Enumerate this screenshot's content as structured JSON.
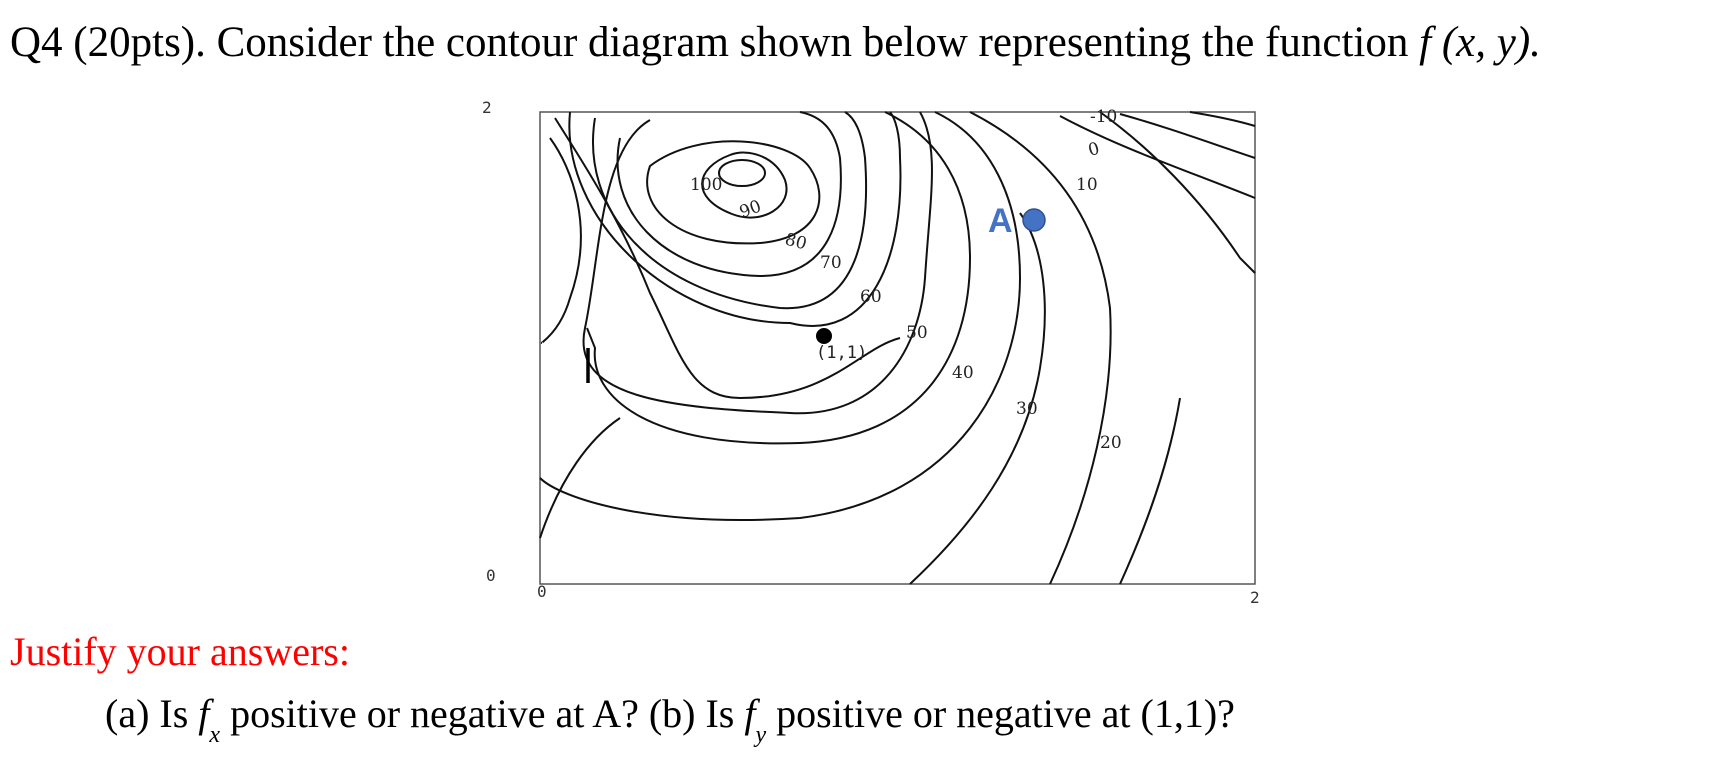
{
  "question": {
    "prefix": "Q4 (20pts). Consider the contour diagram shown below representing the function ",
    "function_expr": "f (x, y).",
    "justify": "Justify your answers:",
    "part_a_pre": "(a) Is ",
    "part_a_f": "f",
    "part_a_sub": "x",
    "part_a_post": " positive or negative at A?  ",
    "part_b_pre": "(b) Is ",
    "part_b_f": "f",
    "part_b_sub": "y",
    "part_b_post": " positive or negative at (1,1)?"
  },
  "diagram": {
    "axis_labels": {
      "y_top": "2",
      "y_bottom": "0",
      "x_left": "0",
      "x_right": "2"
    },
    "contour_levels": [
      "100",
      "90",
      "80",
      "70",
      "60",
      "50",
      "40",
      "30",
      "20",
      "10",
      "0",
      "-10"
    ],
    "point_11_label": "(1,1)",
    "point_a_label": "A",
    "colors": {
      "point_a": "#4472c4",
      "point_11": "#000000",
      "justify_text": "#ff0000"
    }
  }
}
